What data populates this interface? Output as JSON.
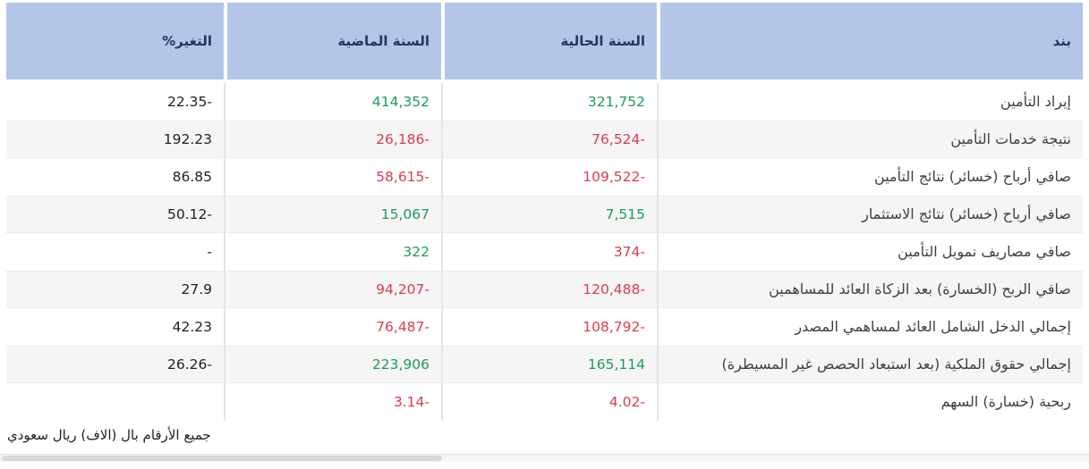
{
  "colors": {
    "header_bg": "#b4c6e7",
    "header_text": "#1f3864",
    "positive": "#1a9d54",
    "negative": "#dc3b4d",
    "row_alt": "#f5f5f6"
  },
  "table": {
    "columns": [
      {
        "key": "item",
        "label": "بند"
      },
      {
        "key": "current",
        "label": "السنة الحالية"
      },
      {
        "key": "previous",
        "label": "السنة الماضية"
      },
      {
        "key": "change",
        "label": "التغير%"
      }
    ],
    "rows": [
      {
        "item": "إيراد التأمين",
        "current": "321,752",
        "current_color": "green",
        "previous": "414,352",
        "previous_color": "green",
        "change": "22.35-"
      },
      {
        "item": "نتيجة خدمات التأمين",
        "current": "76,524-",
        "current_color": "red",
        "previous": "26,186-",
        "previous_color": "red",
        "change": "192.23"
      },
      {
        "item": "صافي أرباح (خسائر) نتائج التأمين",
        "current": "109,522-",
        "current_color": "red",
        "previous": "58,615-",
        "previous_color": "red",
        "change": "86.85"
      },
      {
        "item": "صافي أرباح (خسائر) نتائج الاستثمار",
        "current": "7,515",
        "current_color": "green",
        "previous": "15,067",
        "previous_color": "green",
        "change": "50.12-"
      },
      {
        "item": "صافي مصاريف تمويل التأمين",
        "current": "374-",
        "current_color": "red",
        "previous": "322",
        "previous_color": "green",
        "change": "-"
      },
      {
        "item": "صافي الربح (الخسارة) بعد الزكاة العائد للمساهمين",
        "current": "120,488-",
        "current_color": "red",
        "previous": "94,207-",
        "previous_color": "red",
        "change": "27.9"
      },
      {
        "item": "إجمالي الدخل الشامل العائد لمساهمي المصدر",
        "current": "108,792-",
        "current_color": "red",
        "previous": "76,487-",
        "previous_color": "red",
        "change": "42.23"
      },
      {
        "item": "إجمالي حقوق الملكية (بعد استبعاد الحصص غير المسيطرة)",
        "current": "165,114",
        "current_color": "green",
        "previous": "223,906",
        "previous_color": "green",
        "change": "26.26-"
      },
      {
        "item": "ربحية (خسارة) السهم",
        "current": "4.02-",
        "current_color": "red",
        "previous": "3.14-",
        "previous_color": "red",
        "change": ""
      }
    ],
    "footnote": "جميع الأرقام بال (الاف) ريال سعودي"
  }
}
